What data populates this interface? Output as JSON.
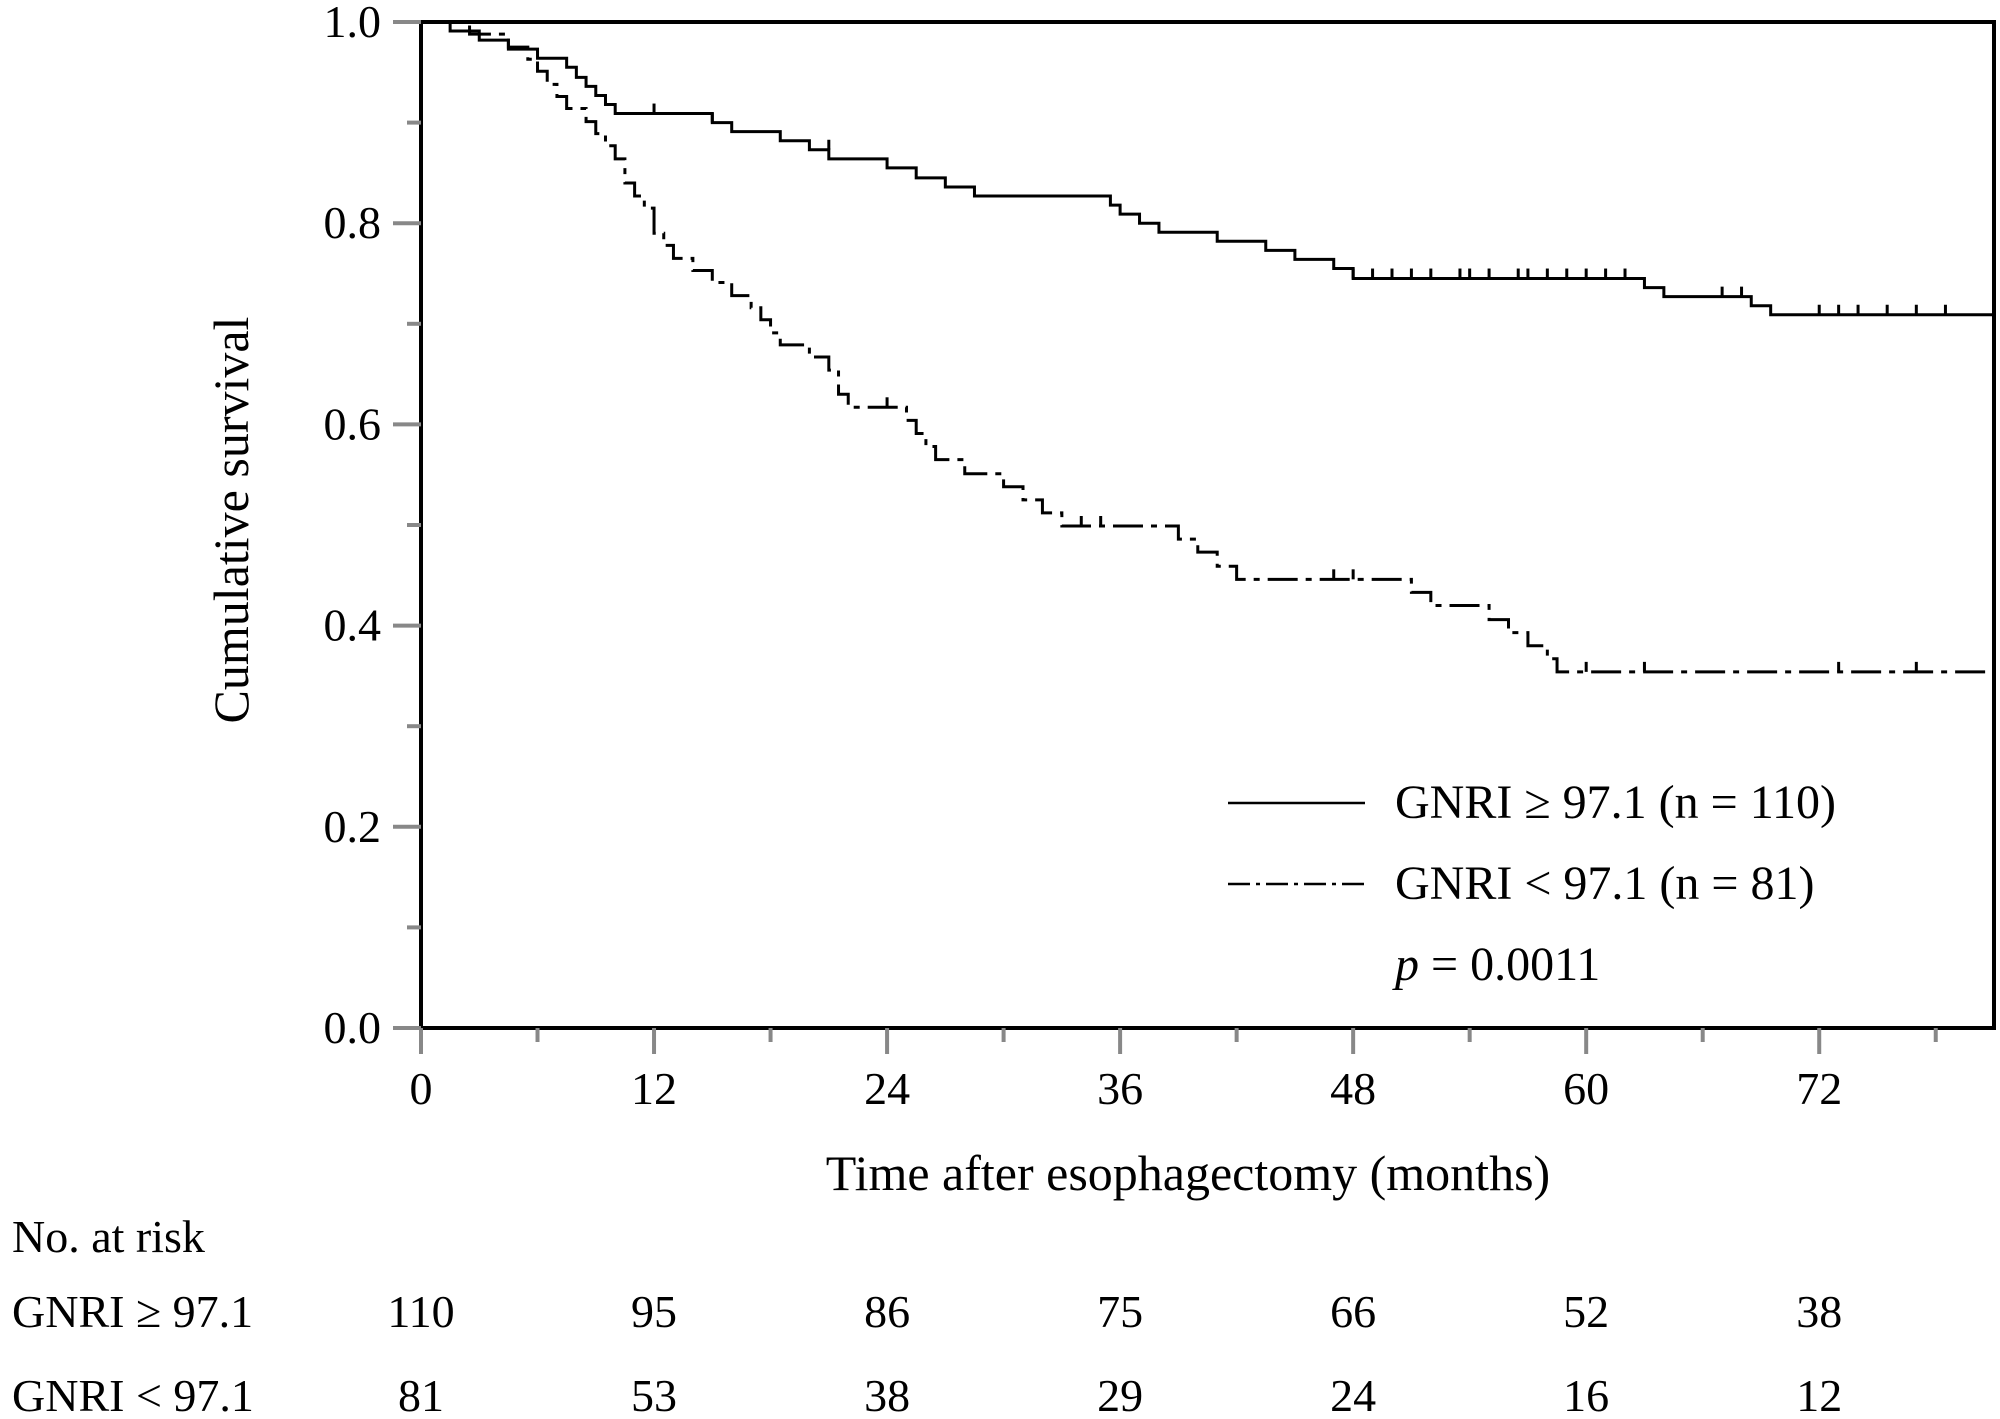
{
  "chart_data": {
    "type": "line",
    "subtype": "kaplan-meier",
    "xlabel": "Time after esophagectomy (months)",
    "ylabel": "Cumulative  survival",
    "x_ticks": [
      "0",
      "12",
      "24",
      "36",
      "48",
      "60",
      "72"
    ],
    "y_ticks": [
      "0.0",
      "0.2",
      "0.4",
      "0.6",
      "0.8",
      "1.0"
    ],
    "xlim": [
      0,
      81
    ],
    "ylim": [
      0,
      1
    ],
    "legend_position": "lower-right",
    "annotation": {
      "italic": "p",
      "text": " = 0.0011"
    },
    "series": [
      {
        "name": "GNRI ≥ 97.1 (n = 110)",
        "line_style": "solid",
        "steps": [
          [
            0,
            1.0
          ],
          [
            1.5,
            0.991
          ],
          [
            3,
            0.982
          ],
          [
            4.5,
            0.973
          ],
          [
            6,
            0.964
          ],
          [
            7.5,
            0.955
          ],
          [
            8,
            0.945
          ],
          [
            8.5,
            0.936
          ],
          [
            9,
            0.927
          ],
          [
            9.5,
            0.918
          ],
          [
            10,
            0.909
          ],
          [
            15,
            0.9
          ],
          [
            16,
            0.891
          ],
          [
            18.5,
            0.882
          ],
          [
            20,
            0.873
          ],
          [
            21,
            0.864
          ],
          [
            24,
            0.855
          ],
          [
            25.5,
            0.845
          ],
          [
            27,
            0.836
          ],
          [
            28.5,
            0.827
          ],
          [
            35.5,
            0.818
          ],
          [
            36,
            0.809
          ],
          [
            37,
            0.8
          ],
          [
            38,
            0.791
          ],
          [
            41,
            0.782
          ],
          [
            43.5,
            0.773
          ],
          [
            45,
            0.764
          ],
          [
            47,
            0.755
          ],
          [
            48,
            0.745
          ],
          [
            63,
            0.736
          ],
          [
            64,
            0.727
          ],
          [
            68.5,
            0.718
          ],
          [
            69.5,
            0.709
          ]
        ],
        "censor_marks": [
          [
            12,
            0.909
          ],
          [
            15,
            0.9
          ],
          [
            21,
            0.873
          ],
          [
            48,
            0.745
          ],
          [
            49,
            0.745
          ],
          [
            50,
            0.745
          ],
          [
            51,
            0.745
          ],
          [
            52,
            0.745
          ],
          [
            53.5,
            0.745
          ],
          [
            54,
            0.745
          ],
          [
            55,
            0.745
          ],
          [
            56.5,
            0.745
          ],
          [
            57,
            0.745
          ],
          [
            58,
            0.745
          ],
          [
            59,
            0.745
          ],
          [
            60,
            0.745
          ],
          [
            61,
            0.745
          ],
          [
            62,
            0.745
          ],
          [
            67,
            0.727
          ],
          [
            68,
            0.727
          ],
          [
            72,
            0.709
          ],
          [
            73,
            0.709
          ],
          [
            74,
            0.709
          ],
          [
            75.5,
            0.709
          ],
          [
            77,
            0.709
          ],
          [
            78.5,
            0.709
          ]
        ],
        "end_x": 81
      },
      {
        "name": "GNRI < 97.1 (n = 81)",
        "line_style": "dashdot",
        "steps": [
          [
            0,
            1.0
          ],
          [
            2.5,
            0.988
          ],
          [
            4.5,
            0.975
          ],
          [
            5.5,
            0.963
          ],
          [
            6,
            0.951
          ],
          [
            6.5,
            0.938
          ],
          [
            7,
            0.926
          ],
          [
            7.5,
            0.914
          ],
          [
            8.5,
            0.901
          ],
          [
            9,
            0.889
          ],
          [
            9.5,
            0.877
          ],
          [
            10,
            0.864
          ],
          [
            10.5,
            0.84
          ],
          [
            11,
            0.827
          ],
          [
            11.5,
            0.815
          ],
          [
            12,
            0.79
          ],
          [
            12.5,
            0.778
          ],
          [
            13,
            0.765
          ],
          [
            14,
            0.753
          ],
          [
            15,
            0.741
          ],
          [
            16,
            0.728
          ],
          [
            17,
            0.716
          ],
          [
            17.5,
            0.704
          ],
          [
            18,
            0.691
          ],
          [
            18.5,
            0.679
          ],
          [
            20,
            0.667
          ],
          [
            21,
            0.654
          ],
          [
            21.5,
            0.63
          ],
          [
            22,
            0.617
          ],
          [
            25,
            0.604
          ],
          [
            25.5,
            0.591
          ],
          [
            26,
            0.578
          ],
          [
            26.5,
            0.565
          ],
          [
            28,
            0.551
          ],
          [
            30,
            0.538
          ],
          [
            31,
            0.525
          ],
          [
            32,
            0.512
          ],
          [
            33,
            0.499
          ],
          [
            39,
            0.486
          ],
          [
            40,
            0.473
          ],
          [
            41,
            0.459
          ],
          [
            42,
            0.446
          ],
          [
            51,
            0.433
          ],
          [
            52,
            0.42
          ],
          [
            55,
            0.406
          ],
          [
            56,
            0.393
          ],
          [
            57,
            0.38
          ],
          [
            58,
            0.367
          ],
          [
            58.5,
            0.354
          ]
        ],
        "censor_marks": [
          [
            24,
            0.617
          ],
          [
            34,
            0.499
          ],
          [
            35,
            0.499
          ],
          [
            47,
            0.446
          ],
          [
            48,
            0.446
          ],
          [
            60,
            0.354
          ],
          [
            63,
            0.354
          ],
          [
            73,
            0.354
          ],
          [
            77,
            0.354
          ]
        ],
        "end_x": 81
      }
    ]
  },
  "risk_table": {
    "title": "No. at risk",
    "rows": [
      {
        "label": "GNRI ≥ 97.1",
        "values": [
          "110",
          "95",
          "86",
          "75",
          "66",
          "52",
          "38"
        ]
      },
      {
        "label": "GNRI < 97.1",
        "values": [
          "81",
          "53",
          "38",
          "29",
          "24",
          "16",
          "12"
        ]
      }
    ]
  }
}
